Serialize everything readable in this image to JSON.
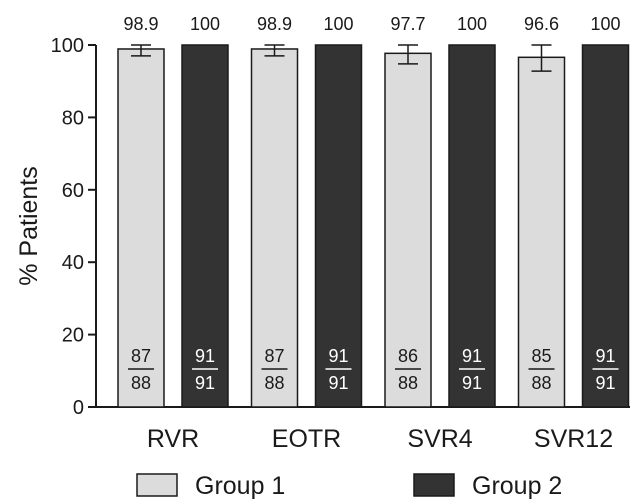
{
  "chart_data": {
    "type": "bar",
    "categories": [
      "RVR",
      "EOTR",
      "SVR4",
      "SVR12"
    ],
    "ylabel": "% Patients",
    "xlabel": "",
    "ylim": [
      0,
      100
    ],
    "yticks": [
      "0",
      "20",
      "40",
      "60",
      "80",
      "100"
    ],
    "series": [
      {
        "name": "Group 1",
        "color": "#dcdcdc",
        "values": [
          98.9,
          98.9,
          97.7,
          96.6
        ],
        "labels": [
          "98.9",
          "98.9",
          "97.7",
          "96.6"
        ],
        "error_low": [
          97.0,
          97.0,
          94.8,
          92.8
        ],
        "error_high": [
          100,
          100,
          100,
          100
        ],
        "numerators": [
          "87",
          "87",
          "86",
          "85"
        ],
        "denominators": [
          "88",
          "88",
          "88",
          "88"
        ]
      },
      {
        "name": "Group 2",
        "color": "#333333",
        "values": [
          100,
          100,
          100,
          100
        ],
        "labels": [
          "100",
          "100",
          "100",
          "100"
        ],
        "numerators": [
          "91",
          "91",
          "91",
          "91"
        ],
        "denominators": [
          "91",
          "91",
          "91",
          "91"
        ]
      }
    ],
    "legend_position": "bottom"
  }
}
